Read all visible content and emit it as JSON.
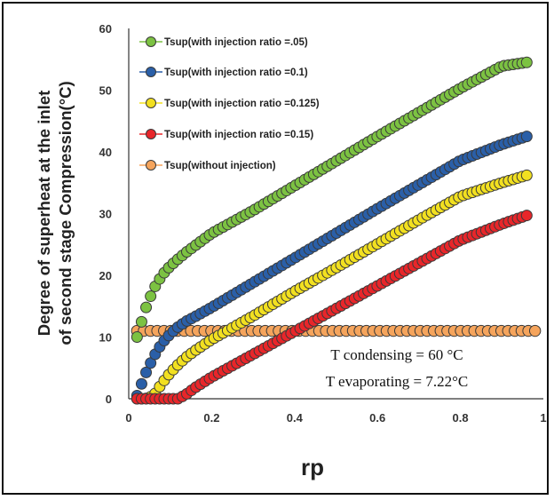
{
  "chart_data": {
    "type": "scatter",
    "title": "",
    "xlabel": "rp",
    "ylabel_line1": "Degree of superheat at the inlet",
    "ylabel_line2": "of second stage Compression(°C)",
    "xlim": [
      0,
      1
    ],
    "ylim": [
      0,
      60
    ],
    "xticks": [
      "0",
      "0.2",
      "0.4",
      "0.6",
      "0.8",
      "1"
    ],
    "yticks": [
      "0",
      "10",
      "20",
      "30",
      "40",
      "50",
      "60"
    ],
    "grid": false,
    "legend_position": "top-left",
    "annotations": [
      "T condensing = 60 °C",
      "T evaporating = 7.22°C"
    ],
    "series": [
      {
        "name": "Tsup(with injection ratio =.05)",
        "color": "#7cc242",
        "x": [
          0.02,
          0.04,
          0.06,
          0.08,
          0.1,
          0.12,
          0.14,
          0.16,
          0.2,
          0.3,
          0.4,
          0.5,
          0.6,
          0.7,
          0.8,
          0.9,
          0.96
        ],
        "y": [
          10,
          14.5,
          17.8,
          20,
          21.5,
          22.7,
          23.8,
          24.8,
          26.8,
          30.5,
          34.5,
          38.5,
          42.5,
          46.4,
          50.3,
          53.9,
          54.5
        ]
      },
      {
        "name": "Tsup(with injection ratio =0.1)",
        "color": "#2a5fa8",
        "x": [
          0.02,
          0.04,
          0.06,
          0.08,
          0.1,
          0.12,
          0.14,
          0.16,
          0.2,
          0.3,
          0.4,
          0.5,
          0.6,
          0.7,
          0.8,
          0.9,
          0.96
        ],
        "y": [
          0.5,
          4,
          6.8,
          9,
          10.5,
          11.7,
          12.6,
          13.3,
          14.8,
          18.8,
          22.8,
          26.8,
          30.8,
          34.7,
          38.6,
          41.2,
          42.5
        ]
      },
      {
        "name": "Tsup(with injection ratio =0.125)",
        "color": "#f2e020",
        "x": [
          0.02,
          0.04,
          0.06,
          0.08,
          0.1,
          0.12,
          0.14,
          0.16,
          0.2,
          0.3,
          0.4,
          0.5,
          0.6,
          0.7,
          0.8,
          0.9,
          0.96
        ],
        "y": [
          0,
          0,
          0.5,
          2.5,
          4.2,
          5.6,
          6.8,
          7.8,
          9.6,
          13.4,
          17.4,
          21.2,
          25.1,
          29,
          32.8,
          35,
          36.2
        ]
      },
      {
        "name": "Tsup(with injection ratio =0.15)",
        "color": "#e8262a",
        "x": [
          0.02,
          0.04,
          0.06,
          0.08,
          0.1,
          0.12,
          0.14,
          0.16,
          0.2,
          0.3,
          0.4,
          0.5,
          0.6,
          0.7,
          0.8,
          0.9,
          0.96
        ],
        "y": [
          0,
          0,
          0,
          0,
          0,
          0,
          0.8,
          1.8,
          3.5,
          7.2,
          10.9,
          14.6,
          18.3,
          22,
          25.7,
          28.3,
          29.7
        ]
      },
      {
        "name": "Tsup(without injection)",
        "color": "#f5a45c",
        "x": [
          0.02,
          0.2,
          0.4,
          0.6,
          0.8,
          0.98
        ],
        "y": [
          11,
          11,
          11,
          11,
          11,
          11
        ]
      }
    ]
  }
}
